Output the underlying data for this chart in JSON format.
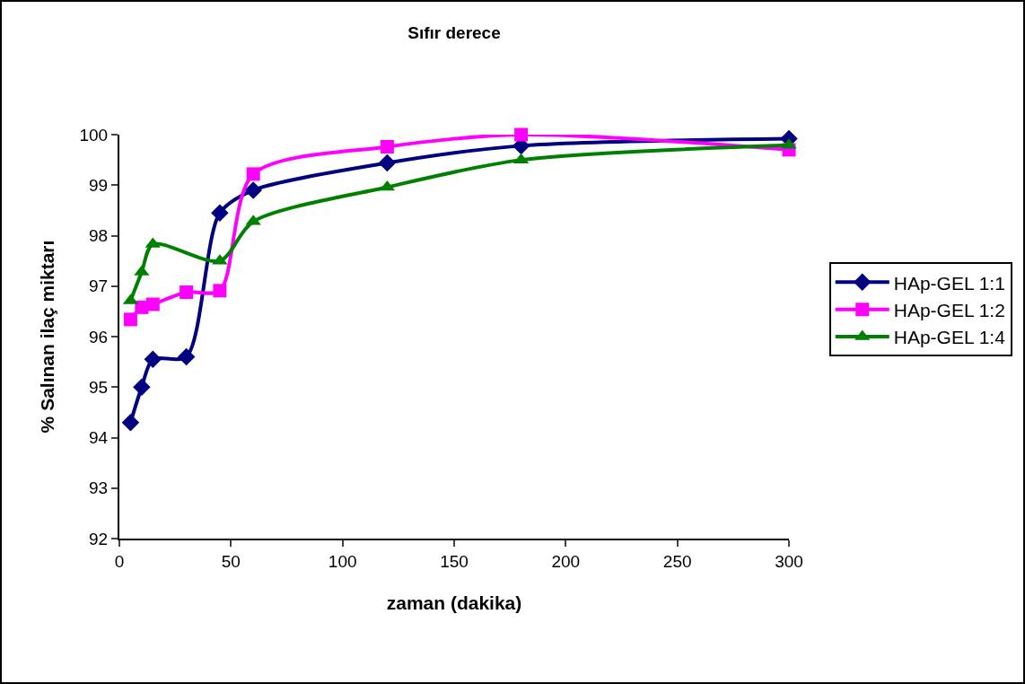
{
  "chart_data": {
    "type": "line",
    "title": "Sıfır derece",
    "xlabel": "zaman (dakika)",
    "ylabel": "% Salınan ilaç miktarı",
    "x": [
      5,
      10,
      15,
      30,
      45,
      60,
      120,
      180,
      300
    ],
    "series": [
      {
        "name": "HAp-GEL 1:1",
        "color": "#000080",
        "marker": "diamond",
        "values": [
          94.3,
          95.0,
          95.55,
          95.6,
          98.45,
          98.9,
          99.44,
          99.78,
          99.92
        ]
      },
      {
        "name": "HAp-GEL 1:2",
        "color": "#ff00ff",
        "marker": "square",
        "values": [
          96.34,
          96.58,
          96.64,
          96.88,
          96.91,
          99.22,
          99.76,
          100,
          99.7
        ]
      },
      {
        "name": "HAp-GEL 1:4",
        "color": "#008000",
        "marker": "triangle",
        "values": [
          96.71,
          97.28,
          97.83,
          null,
          97.5,
          98.28,
          98.96,
          99.5,
          99.79
        ]
      }
    ],
    "xlim": [
      0,
      300
    ],
    "xticks": [
      0,
      50,
      100,
      150,
      200,
      250,
      300
    ],
    "ylim": [
      92,
      100
    ],
    "yticks": [
      92,
      93,
      94,
      95,
      96,
      97,
      98,
      99,
      100
    ],
    "grid": false,
    "legend": "right",
    "line_style": "solid"
  }
}
